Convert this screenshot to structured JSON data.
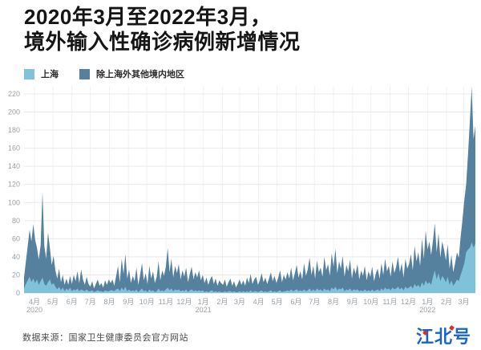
{
  "title": {
    "line1": "2020年3月至2022年3月，",
    "line2": "境外输入性确诊病例新增情况"
  },
  "legend": [
    {
      "label": "上海",
      "color": "#7fc2da"
    },
    {
      "label": "除上海外其他境内地区",
      "color": "#55819e"
    }
  ],
  "footer": {
    "source": "数据来源：国家卫生健康委员会官方网站",
    "logo": "江北号"
  },
  "chart_data": {
    "type": "area",
    "stacked": true,
    "title": "2020年3月至2022年3月，境外输入性确诊病例新增情况",
    "xlabel": "",
    "ylabel": "",
    "ylim": [
      0,
      220
    ],
    "y_ticks": [
      0,
      20,
      40,
      60,
      80,
      100,
      120,
      140,
      160,
      180,
      200,
      220
    ],
    "grid": true,
    "legend_position": "top-left",
    "start_date": "2020-03-15",
    "step_days": 3,
    "total_days": 735,
    "x_ticks": [
      {
        "label": "4月",
        "year": "2020",
        "day": 17
      },
      {
        "label": "5月",
        "day": 47
      },
      {
        "label": "6月",
        "day": 78
      },
      {
        "label": "7月",
        "day": 108
      },
      {
        "label": "8月",
        "day": 139
      },
      {
        "label": "9月",
        "day": 170
      },
      {
        "label": "10月",
        "day": 200
      },
      {
        "label": "11月",
        "day": 231
      },
      {
        "label": "12月",
        "day": 261
      },
      {
        "label": "1月",
        "year": "2021",
        "day": 292
      },
      {
        "label": "2月",
        "day": 323
      },
      {
        "label": "3月",
        "day": 351
      },
      {
        "label": "4月",
        "day": 382
      },
      {
        "label": "5月",
        "day": 412
      },
      {
        "label": "6月",
        "day": 443
      },
      {
        "label": "7月",
        "day": 473
      },
      {
        "label": "8月",
        "day": 504
      },
      {
        "label": "9月",
        "day": 535
      },
      {
        "label": "10月",
        "day": 565
      },
      {
        "label": "11月",
        "day": 596
      },
      {
        "label": "12月",
        "day": 626
      },
      {
        "label": "1月",
        "year": "2022",
        "day": 657
      },
      {
        "label": "2月",
        "day": 688
      },
      {
        "label": "3月",
        "day": 716
      }
    ],
    "series": [
      {
        "name": "上海",
        "color": "#7fc2da",
        "values": [
          5,
          10,
          14,
          18,
          12,
          16,
          11,
          15,
          9,
          13,
          17,
          10,
          8,
          12,
          15,
          9,
          11,
          7,
          4,
          7,
          3,
          6,
          2,
          5,
          3,
          6,
          2,
          4,
          3,
          5,
          2,
          4,
          3,
          2,
          4,
          2,
          2,
          3,
          1,
          2,
          3,
          2,
          2,
          1,
          3,
          2,
          2,
          3,
          3,
          2,
          4,
          5,
          2,
          6,
          3,
          7,
          2,
          4,
          2,
          3,
          2,
          4,
          1,
          3,
          5,
          2,
          3,
          1,
          4,
          2,
          3,
          1,
          2,
          5,
          2,
          3,
          2,
          4,
          6,
          3,
          5,
          2,
          4,
          3,
          4,
          2,
          3,
          2,
          4,
          1,
          3,
          4,
          2,
          3,
          2,
          3,
          2,
          3,
          1,
          2,
          1,
          2,
          3,
          1,
          2,
          1,
          2,
          1,
          1,
          2,
          1,
          2,
          2,
          1,
          2,
          1,
          1,
          2,
          1,
          2,
          1,
          2,
          1,
          3,
          1,
          2,
          2,
          1,
          2,
          3,
          1,
          2,
          1,
          2,
          3,
          1,
          2,
          1,
          2,
          3,
          1,
          2,
          2,
          3,
          2,
          4,
          2,
          3,
          4,
          2,
          3,
          2,
          4,
          2,
          3,
          5,
          2,
          4,
          2,
          5,
          3,
          4,
          2,
          5,
          3,
          4,
          2,
          6,
          4,
          7,
          3,
          5,
          4,
          6,
          2,
          4,
          3,
          5,
          2,
          4,
          3,
          4,
          2,
          3,
          2,
          4,
          2,
          3,
          2,
          4,
          2,
          3,
          4,
          2,
          5,
          3,
          6,
          4,
          5,
          3,
          6,
          4,
          5,
          7,
          4,
          6,
          3,
          7,
          5,
          6,
          8,
          5,
          10,
          7,
          9,
          6,
          12,
          8,
          14,
          10,
          12,
          9,
          18,
          25,
          15,
          22,
          13,
          19,
          16,
          12,
          18,
          9,
          14,
          8,
          11,
          15,
          13,
          20,
          26,
          33,
          45,
          48,
          50,
          56,
          50,
          55
        ]
      },
      {
        "name": "除上海外其他境内地区",
        "color": "#55819e",
        "values": [
          12,
          25,
          38,
          52,
          45,
          60,
          48,
          35,
          28,
          40,
          95,
          42,
          30,
          55,
          35,
          22,
          30,
          18,
          12,
          20,
          9,
          14,
          7,
          11,
          6,
          13,
          8,
          16,
          10,
          19,
          9,
          22,
          12,
          7,
          14,
          8,
          5,
          10,
          4,
          8,
          12,
          6,
          9,
          5,
          11,
          7,
          13,
          8,
          12,
          6,
          15,
          25,
          10,
          32,
          18,
          36,
          14,
          22,
          9,
          16,
          11,
          24,
          8,
          17,
          28,
          12,
          19,
          9,
          26,
          14,
          21,
          10,
          16,
          30,
          12,
          22,
          17,
          25,
          44,
          20,
          33,
          15,
          26,
          19,
          28,
          13,
          22,
          16,
          24,
          11,
          18,
          25,
          13,
          20,
          15,
          22,
          12,
          17,
          10,
          15,
          8,
          13,
          16,
          9,
          14,
          7,
          12,
          10,
          8,
          13,
          6,
          10,
          14,
          7,
          11,
          5,
          9,
          13,
          8,
          12,
          7,
          15,
          10,
          18,
          9,
          13,
          16,
          8,
          12,
          19,
          11,
          15,
          9,
          14,
          20,
          12,
          17,
          10,
          15,
          22,
          11,
          18,
          13,
          20,
          14,
          24,
          12,
          19,
          27,
          15,
          21,
          13,
          29,
          17,
          23,
          34,
          18,
          26,
          14,
          31,
          20,
          24,
          16,
          35,
          22,
          28,
          17,
          38,
          25,
          42,
          19,
          30,
          23,
          35,
          16,
          27,
          21,
          32,
          14,
          24,
          18,
          28,
          13,
          22,
          17,
          26,
          12,
          21,
          16,
          25,
          11,
          19,
          23,
          14,
          28,
          17,
          32,
          20,
          25,
          15,
          29,
          18,
          24,
          33,
          19,
          27,
          14,
          31,
          22,
          26,
          35,
          20,
          42,
          28,
          36,
          24,
          48,
          30,
          55,
          38,
          45,
          33,
          40,
          52,
          30,
          44,
          26,
          38,
          32,
          24,
          36,
          18,
          28,
          15,
          22,
          30,
          26,
          42,
          55,
          70,
          75,
          105,
          140,
          172,
          120,
          130
        ]
      }
    ]
  }
}
